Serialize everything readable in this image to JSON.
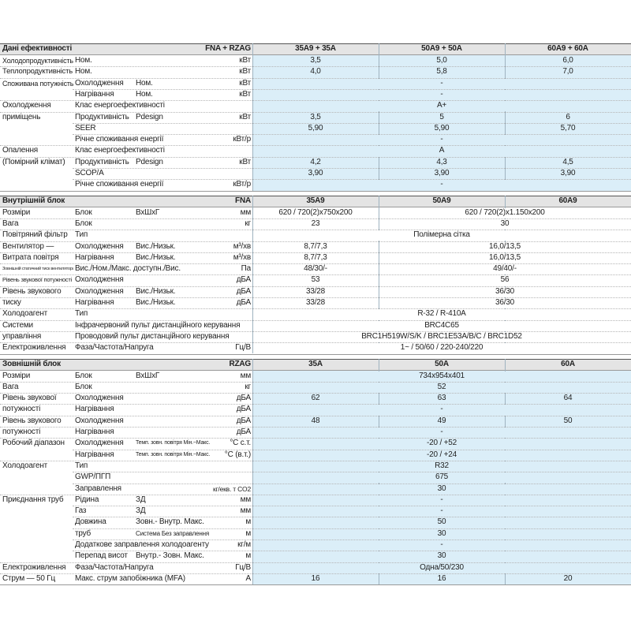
{
  "sections": [
    {
      "title": "Дані ефективності",
      "model": "FNA + RZAG",
      "columns": [
        "35A9 + 35A",
        "50A9 + 50A",
        "60A9 + 60A"
      ],
      "rows": [
        {
          "group": "Холодопродуктивність",
          "sub": "Ном.",
          "unit": "кВт",
          "values": [
            "3,5",
            "5,0",
            "6,0"
          ]
        },
        {
          "group": "Теплопродуктивність",
          "sub": "Ном.",
          "unit": "кВт",
          "values": [
            "4,0",
            "5,8",
            "7,0"
          ]
        },
        {
          "group": "Споживана потужність",
          "sub": "Охолодження",
          "qual": "Ном.",
          "unit": "кВт",
          "values": [
            "-"
          ]
        },
        {
          "sub": "Нагрівання",
          "qual": "Ном.",
          "unit": "кВт",
          "values": [
            "-"
          ]
        },
        {
          "group": "Охолодження",
          "sub": "Клас енергоефективності",
          "values": [
            "A+"
          ]
        },
        {
          "group": "приміщень",
          "sub": "Продуктивність",
          "qual": "Pdesign",
          "unit": "кВт",
          "values": [
            "3,5",
            "5",
            "6"
          ]
        },
        {
          "sub": "SEER",
          "values": [
            "5,90",
            "5,90",
            "5,70"
          ]
        },
        {
          "sub": "Річне споживання енергії",
          "unit": "кВт/р",
          "values": [
            "-"
          ]
        },
        {
          "group": "Опалення",
          "sub": "Клас енергоефективності",
          "values": [
            "A"
          ]
        },
        {
          "group": "(Помірний клімат)",
          "sub": "Продуктивність",
          "qual": "Pdesign",
          "unit": "кВт",
          "values": [
            "4,2",
            "4,3",
            "4,5"
          ]
        },
        {
          "sub": "SCOP/A",
          "values": [
            "3,90",
            "3,90",
            "3,90"
          ]
        },
        {
          "sub": "Річне споживання енергії",
          "unit": "кВт/р",
          "values": [
            "-"
          ]
        }
      ]
    },
    {
      "title": "Внутрішній блок",
      "model": "FNA",
      "columns": [
        "35A9",
        "50A9",
        "60A9"
      ],
      "rows": [
        {
          "group": "Розміри",
          "sub": "Блок",
          "qual": "ВхШхГ",
          "unit": "мм",
          "values": [
            "620 / 720(2)x750x200",
            "620 / 720(2)x1.150x200"
          ]
        },
        {
          "group": "Вага",
          "sub": "Блок",
          "unit": "кг",
          "values": [
            "23",
            "30"
          ]
        },
        {
          "group": "Повітряний фільтр",
          "sub": "Тип",
          "values": [
            "Полімерна сітка"
          ]
        },
        {
          "group": "Вентилятор —",
          "sub": "Охолодження",
          "qual": "Вис./Низьк.",
          "unit": "м³/хв",
          "values": [
            "8,7/7,3",
            "16,0/13,5"
          ]
        },
        {
          "group": "Витрата повітря",
          "sub": "Нагрівання",
          "qual": "Вис./Низьк.",
          "unit": "м³/хв",
          "values": [
            "8,7/7,3",
            "16,0/13,5"
          ]
        },
        {
          "group": "Зовнішній статичний тиск вентилятора",
          "sub": "Вис./Ном./Макс. доступн./Вис.",
          "unit": "Па",
          "values": [
            "48/30/-",
            "49/40/-"
          ]
        },
        {
          "group": "Рівень звукової потужності",
          "sub": "Охолодження",
          "unit": "дБА",
          "values": [
            "53",
            "56"
          ]
        },
        {
          "group": "Рівень звукового",
          "sub": "Охолодження",
          "qual": "Вис./Низьк.",
          "unit": "дБА",
          "values": [
            "33/28",
            "36/30"
          ]
        },
        {
          "group": "тиску",
          "sub": "Нагрівання",
          "qual": "Вис./Низьк.",
          "unit": "дБА",
          "values": [
            "33/28",
            "36/30"
          ]
        },
        {
          "group": "Холодоагент",
          "sub": "Тип",
          "values": [
            "R-32 / R-410A"
          ]
        },
        {
          "group": "Системи",
          "sub": "Інфрачервоний пульт дистанційного керування",
          "values": [
            "BRC4C65"
          ]
        },
        {
          "group": "управління",
          "sub": "Проводовий пульт дистанційного керування",
          "values": [
            "BRC1H519W/S/K / BRC1E53A/B/C / BRC1D52"
          ]
        },
        {
          "group": "Електроживлення",
          "sub": "Фаза/Частота/Напруга",
          "unit": "Гц/В",
          "values": [
            "1~ / 50/60 / 220-240/220"
          ]
        }
      ]
    },
    {
      "title": "Зовнішній блок",
      "model": "RZAG",
      "columns": [
        "35A",
        "50A",
        "60A"
      ],
      "rows": [
        {
          "group": "Розміри",
          "sub": "Блок",
          "qual": "ВхШхГ",
          "unit": "мм",
          "values": [
            "734x954x401"
          ]
        },
        {
          "group": "Вага",
          "sub": "Блок",
          "unit": "кг",
          "values": [
            "52"
          ]
        },
        {
          "group": "Рівень звукової",
          "sub": "Охолодження",
          "unit": "дБА",
          "values": [
            "62",
            "63",
            "64"
          ]
        },
        {
          "group": "потужності",
          "sub": "Нагрівання",
          "unit": "дБА",
          "values": [
            "-"
          ]
        },
        {
          "group": "Рівень звукового",
          "sub": "Охолодження",
          "unit": "дБА",
          "values": [
            "48",
            "49",
            "50"
          ]
        },
        {
          "group": "потужності",
          "sub": "Нагрівання",
          "unit": "дБА",
          "values": [
            "-"
          ]
        },
        {
          "group": "Робочий діапазон",
          "sub": "Охолодження",
          "qual": "Темп. зовн. повітря Мін.~Макс.",
          "unit": "°С с.т.",
          "values": [
            "-20 / +52"
          ]
        },
        {
          "sub": "Нагрівання",
          "qual": "Темп. зовн. повітря Мін.~Макс.",
          "unit": "°С (в.т.)",
          "values": [
            "-20 / +24"
          ]
        },
        {
          "group": "Холодоагент",
          "sub": "Тип",
          "values": [
            "R32"
          ]
        },
        {
          "sub": "GWP/ПГП",
          "values": [
            "675"
          ]
        },
        {
          "sub": "Заправлення",
          "unit": "кг/екв. т CO2",
          "values": [
            "30"
          ]
        },
        {
          "group": "Приєднання труб",
          "sub": "Рідина",
          "qual": "ЗД",
          "unit": "мм",
          "values": [
            "-"
          ]
        },
        {
          "sub": "Газ",
          "qual": "ЗД",
          "unit": "мм",
          "values": [
            "-"
          ]
        },
        {
          "sub": "Довжина",
          "qual": "Зовн.- Внутр. Макс.",
          "unit": "м",
          "values": [
            "50"
          ]
        },
        {
          "sub": "труб",
          "qual": "Система   Без заправлення",
          "unit": "м",
          "values": [
            "30"
          ]
        },
        {
          "sub": "Додаткове заправлення холодоагенту",
          "unit": "кг/м",
          "values": [
            "-"
          ]
        },
        {
          "sub": "Перепад висот",
          "qual": "Внутр.- Зовн. Макс.",
          "unit": "м",
          "values": [
            "30"
          ]
        },
        {
          "group": "Електроживлення",
          "sub": "Фаза/Частота/Напруга",
          "unit": "Гц/В",
          "values": [
            "Одна/50/230"
          ]
        },
        {
          "group": "Струм — 50 Гц",
          "sub": "Макс. струм запобіжника (MFA)",
          "unit": "A",
          "values": [
            "16",
            "16",
            "20"
          ]
        }
      ]
    }
  ]
}
